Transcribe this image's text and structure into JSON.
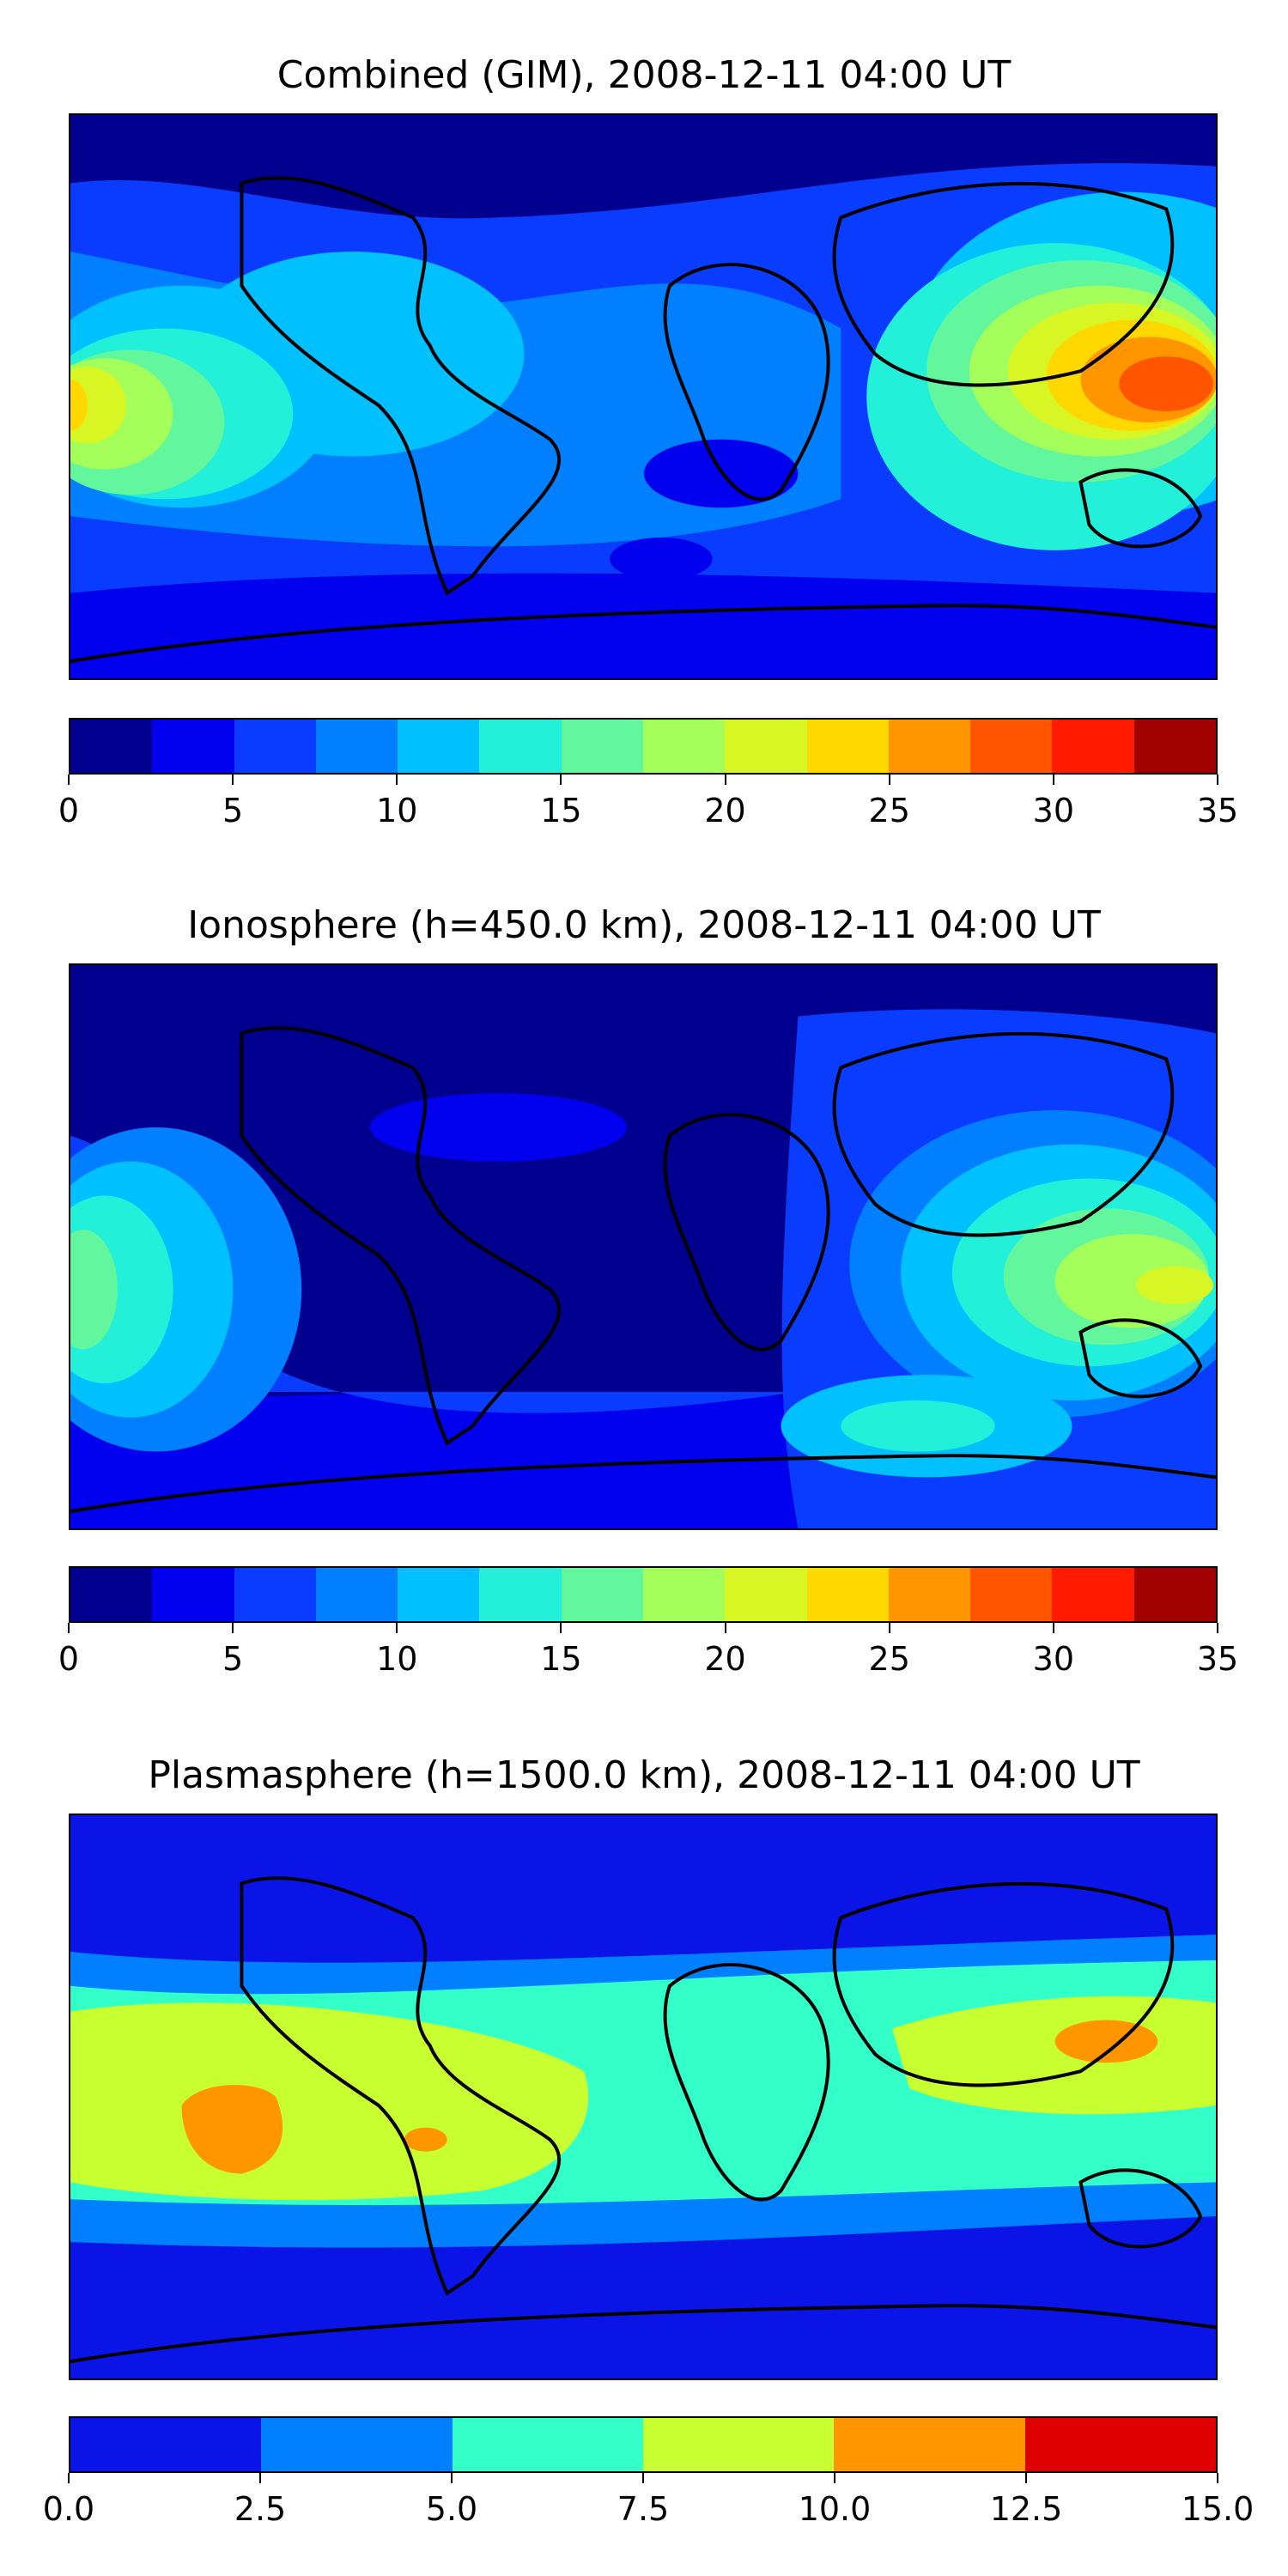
{
  "panels": [
    {
      "title": "Combined (GIM), 2008-12-11 04:00 UT",
      "colors": [
        "#00008f",
        "#0000ee",
        "#0a3cff",
        "#0080ff",
        "#00c0ff",
        "#22f0d8",
        "#63f79d",
        "#a4ff5a",
        "#d8f624",
        "#ffd800",
        "#ff9600",
        "#ff5500",
        "#ff1a00",
        "#a10000"
      ],
      "tick_labels": [
        "0",
        "5",
        "10",
        "15",
        "20",
        "25",
        "30",
        "35"
      ],
      "range": [
        0,
        35
      ]
    },
    {
      "title": "Ionosphere  (h=450.0 km), 2008-12-11 04:00 UT",
      "colors": [
        "#00008f",
        "#0000ee",
        "#0a3cff",
        "#0080ff",
        "#00c0ff",
        "#22f0d8",
        "#63f79d",
        "#a4ff5a",
        "#d8f624",
        "#ffd800",
        "#ff9600",
        "#ff5500",
        "#ff1a00",
        "#a10000"
      ],
      "tick_labels": [
        "0",
        "5",
        "10",
        "15",
        "20",
        "25",
        "30",
        "35"
      ],
      "range": [
        0,
        35
      ]
    },
    {
      "title": "Plasmasphere (h=1500.0 km), 2008-12-11 04:00 UT",
      "colors": [
        "#0a14e6",
        "#0080ff",
        "#33ffc8",
        "#c8ff30",
        "#ff9600",
        "#dd0000"
      ],
      "tick_labels": [
        "0.0",
        "2.5",
        "5.0",
        "7.5",
        "10.0",
        "12.5",
        "15.0"
      ],
      "range": [
        0,
        15
      ]
    }
  ]
}
